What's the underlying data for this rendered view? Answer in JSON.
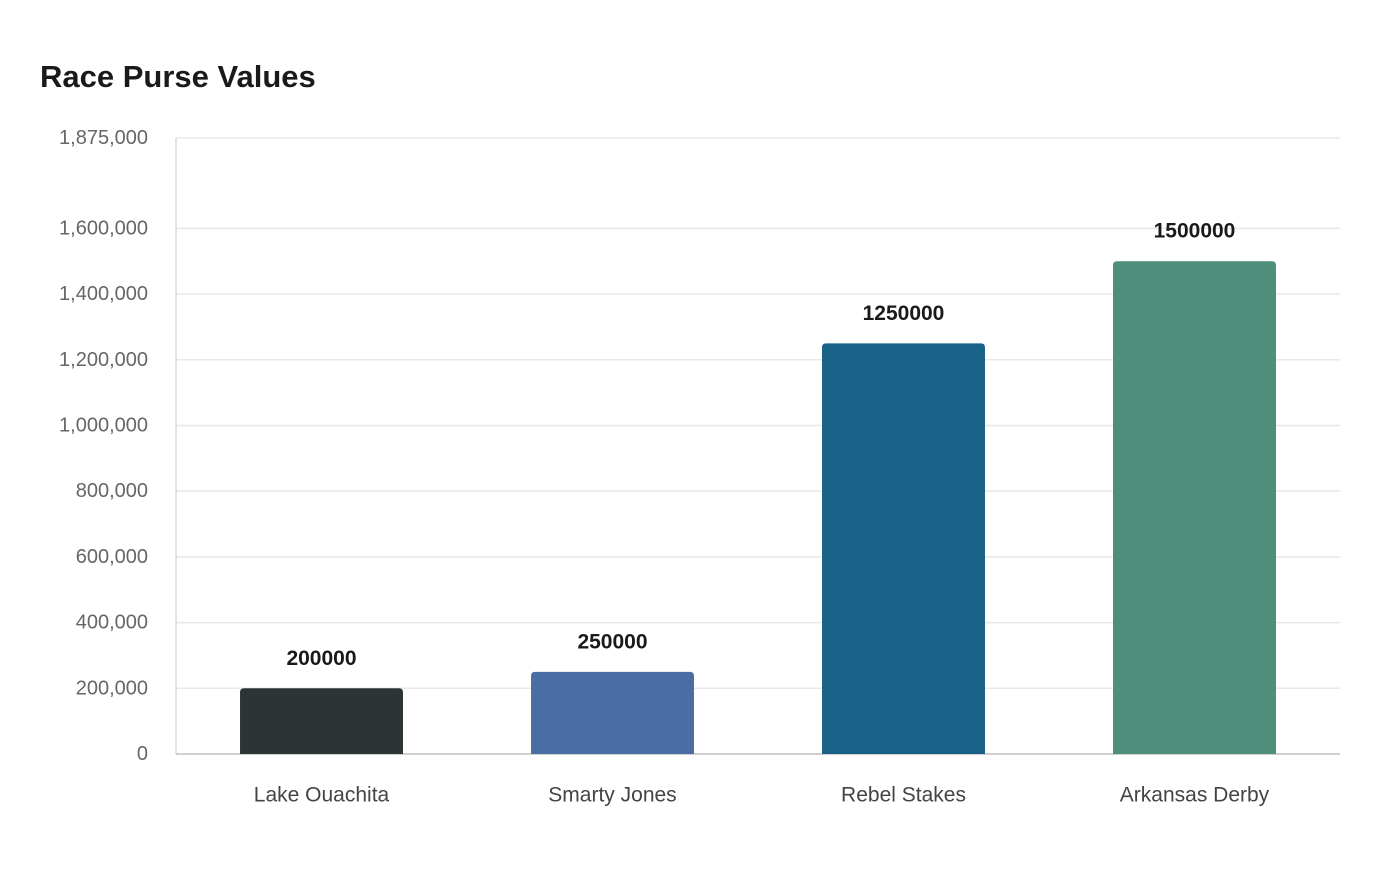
{
  "chart_data": {
    "type": "bar",
    "title": "Race Purse Values",
    "xlabel": "",
    "ylabel": "",
    "categories": [
      "Lake Ouachita",
      "Smarty Jones",
      "Rebel Stakes",
      "Arkansas Derby"
    ],
    "values": [
      200000,
      250000,
      1250000,
      1500000
    ],
    "data_labels": [
      "200000",
      "250000",
      "1250000",
      "1500000"
    ],
    "colors": [
      "#2d3436",
      "#4a6da3",
      "#186288",
      "#4e8e7b"
    ],
    "ylim": [
      0,
      1875000
    ],
    "yticks": [
      0,
      200000,
      400000,
      600000,
      800000,
      1000000,
      1200000,
      1400000,
      1600000,
      1875000
    ],
    "ytick_labels": [
      "0",
      "200,000",
      "400,000",
      "600,000",
      "800,000",
      "1,000,000",
      "1,200,000",
      "1,400,000",
      "1,600,000",
      "1,875,000"
    ],
    "grid": true,
    "legend": false
  }
}
